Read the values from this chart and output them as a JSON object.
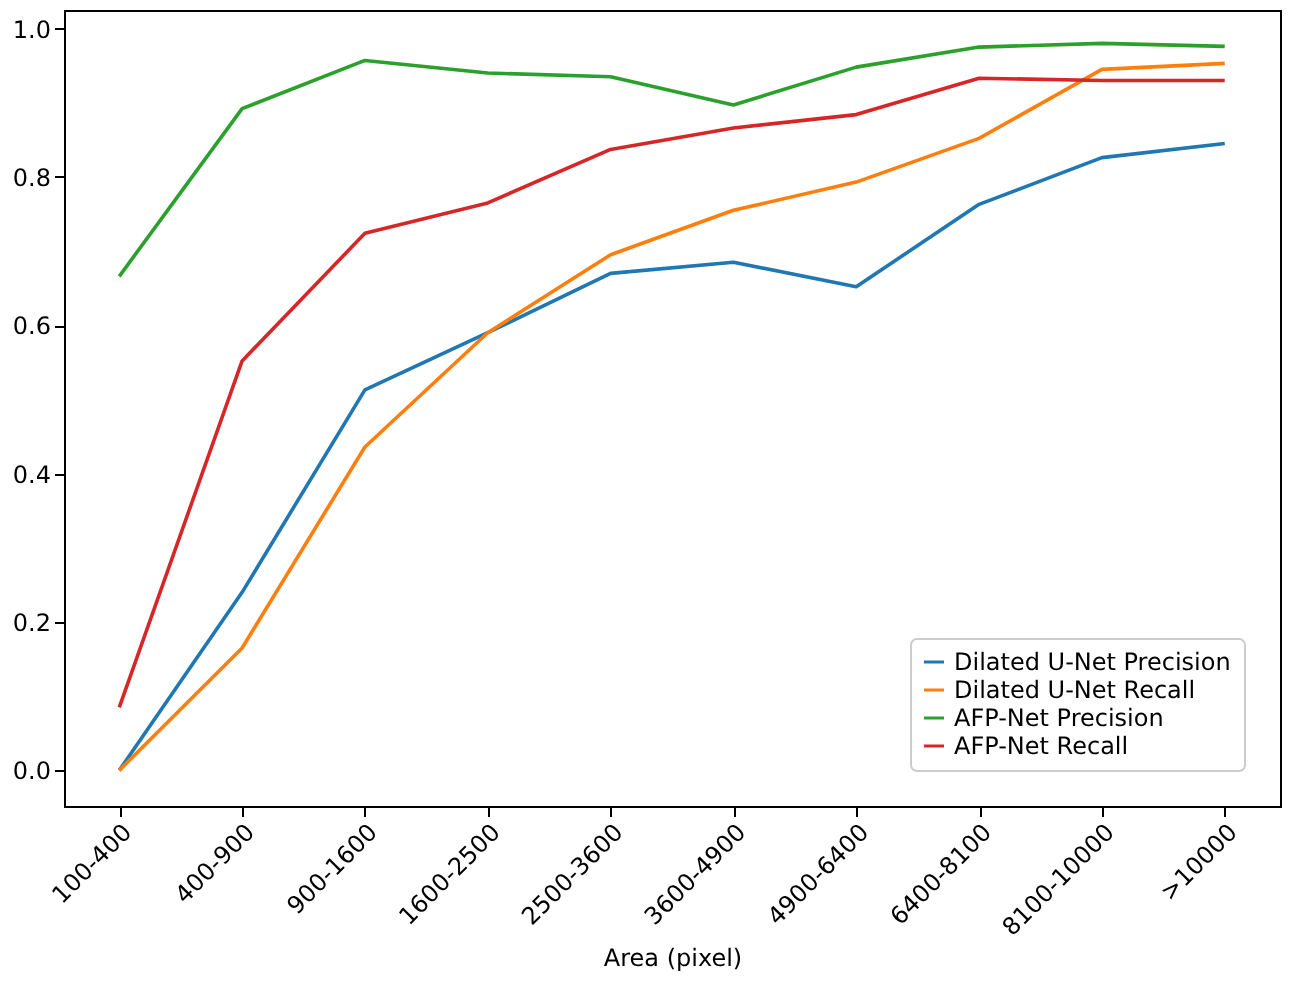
{
  "chart_data": {
    "type": "line",
    "xlabel": "Area (pixel)",
    "categories": [
      "100-400",
      "400-900",
      "900-1600",
      "1600-2500",
      "2500-3600",
      "3600-4900",
      "4900-6400",
      "6400-8100",
      "8100-10000",
      ">10000"
    ],
    "series": [
      {
        "name": "Dilated U-Net Precision",
        "color": "#1f77b4",
        "values": [
          0.0,
          0.24,
          0.513,
          0.59,
          0.67,
          0.685,
          0.652,
          0.763,
          0.826,
          0.845
        ]
      },
      {
        "name": "Dilated U-Net Recall",
        "color": "#ff7f0e",
        "values": [
          0.0,
          0.165,
          0.436,
          0.59,
          0.695,
          0.755,
          0.793,
          0.852,
          0.945,
          0.953
        ]
      },
      {
        "name": "AFP-Net Precision",
        "color": "#2ca02c",
        "values": [
          0.666,
          0.892,
          0.957,
          0.94,
          0.935,
          0.897,
          0.948,
          0.975,
          0.98,
          0.976
        ]
      },
      {
        "name": "AFP-Net Recall",
        "color": "#d62728",
        "values": [
          0.085,
          0.552,
          0.724,
          0.765,
          0.837,
          0.866,
          0.884,
          0.933,
          0.93,
          0.93
        ]
      }
    ],
    "ylim": [
      -0.048,
      1.025
    ],
    "yticks": [
      {
        "value": 0,
        "label": "0.0"
      },
      0.2,
      0.4,
      0.6,
      0.8,
      {
        "value": 1,
        "label": "1.0"
      }
    ],
    "grid": false,
    "legend": "bottom right",
    "marker": "none",
    "line_style": "solid"
  }
}
